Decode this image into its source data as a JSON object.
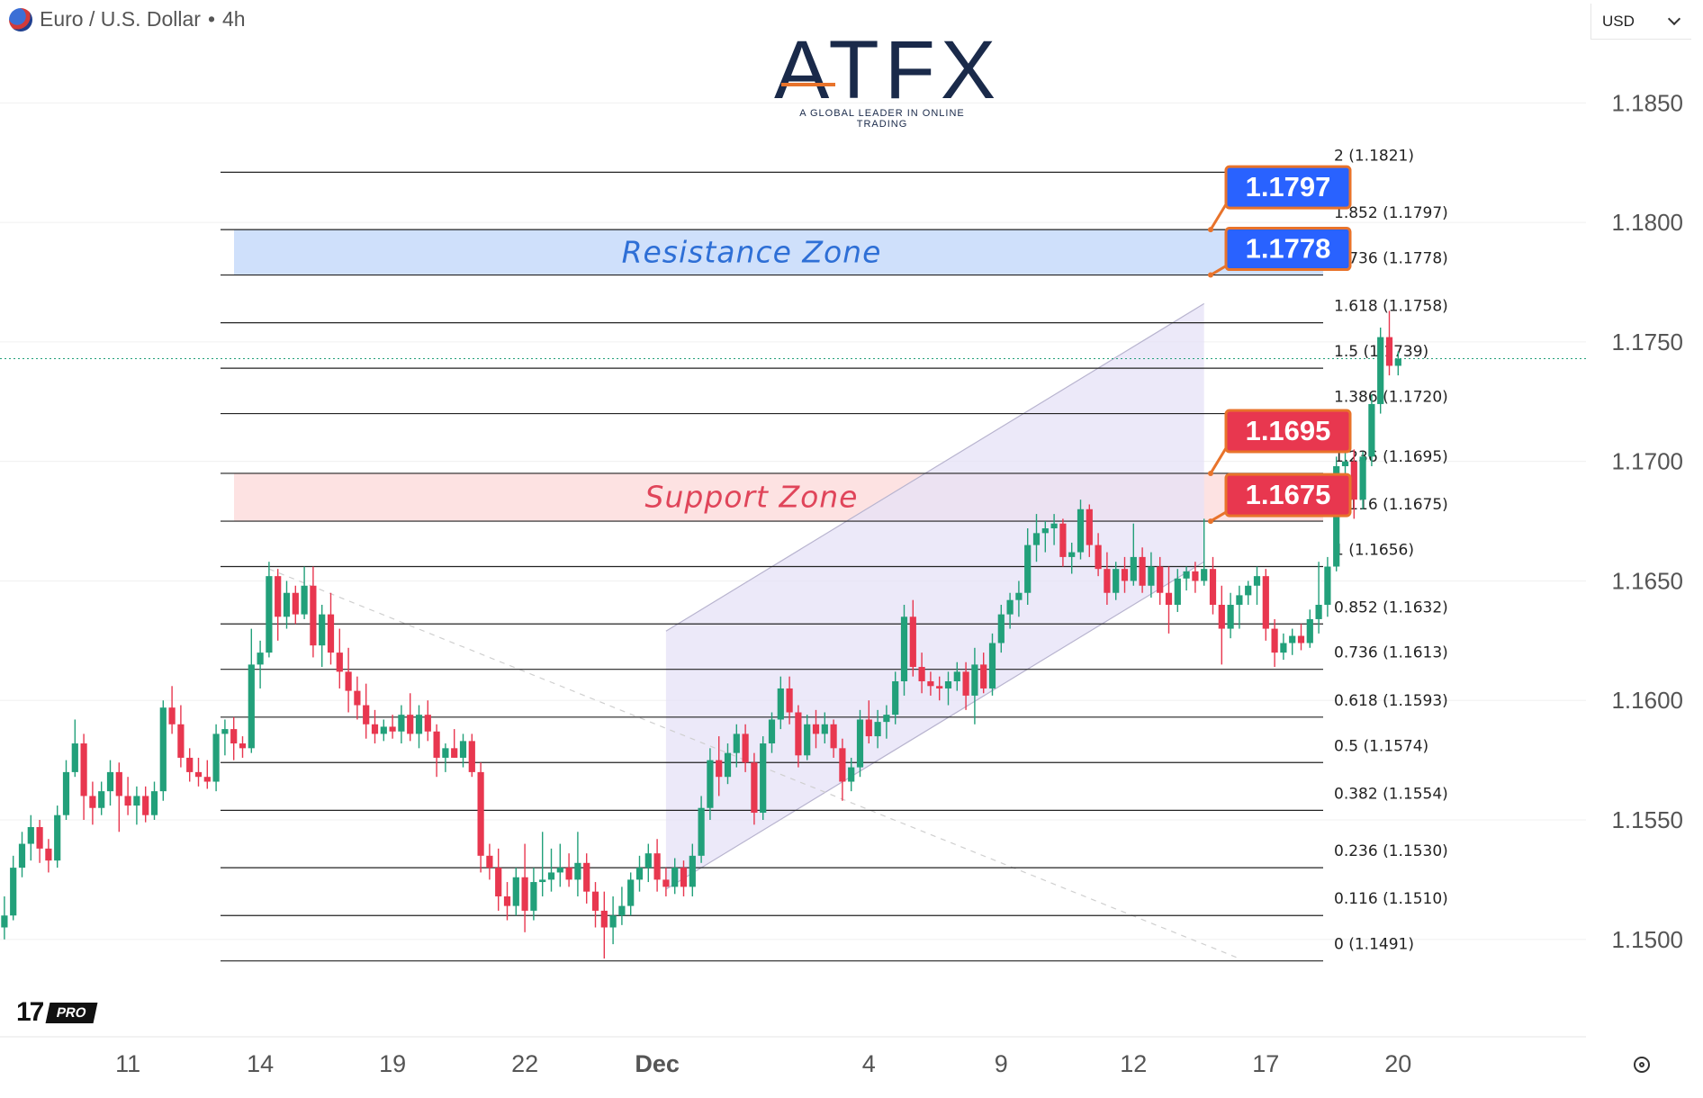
{
  "header": {
    "symbol": "Euro / U.S. Dollar",
    "timeframe": "4h",
    "currency": "USD"
  },
  "logo": {
    "word": "ATFX",
    "tagline": "A GLOBAL LEADER IN ONLINE TRADING"
  },
  "branding": {
    "tv_pro": "PRO"
  },
  "chart_data": {
    "type": "candlestick",
    "title": "",
    "price_axis": {
      "range": [
        1.146,
        1.1878
      ],
      "ticks": [
        "1.1850",
        "1.1800",
        "1.1750",
        "1.1700",
        "1.1650",
        "1.1600",
        "1.1550",
        "1.1500"
      ]
    },
    "time_axis": {
      "range_bars": [
        0,
        179
      ],
      "ticks": [
        {
          "label": "11",
          "bar": 14
        },
        {
          "label": "14",
          "bar": 29
        },
        {
          "label": "19",
          "bar": 44
        },
        {
          "label": "22",
          "bar": 59
        },
        {
          "label": "Dec",
          "bar": 74,
          "bold": true
        },
        {
          "label": "4",
          "bar": 98
        },
        {
          "label": "9",
          "bar": 113
        },
        {
          "label": "12",
          "bar": 128
        },
        {
          "label": "17",
          "bar": 143
        },
        {
          "label": "20",
          "bar": 158
        }
      ]
    },
    "fib_levels": [
      {
        "label": "2 (1.1821)",
        "price": 1.1821
      },
      {
        "label": "1.852 (1.1797)",
        "price": 1.1797
      },
      {
        "label": "1.736 (1.1778)",
        "price": 1.1778
      },
      {
        "label": "1.618 (1.1758)",
        "price": 1.1758
      },
      {
        "label": "1.5 (1.1739)",
        "price": 1.1739
      },
      {
        "label": "1.386 (1.1720)",
        "price": 1.172
      },
      {
        "label": "1.236 (1.1695)",
        "price": 1.1695
      },
      {
        "label": "1.116 (1.1675)",
        "price": 1.1675
      },
      {
        "label": "1 (1.1656)",
        "price": 1.1656
      },
      {
        "label": "0.852 (1.1632)",
        "price": 1.1632
      },
      {
        "label": "0.736 (1.1613)",
        "price": 1.1613
      },
      {
        "label": "0.618 (1.1593)",
        "price": 1.1593
      },
      {
        "label": "0.5 (1.1574)",
        "price": 1.1574
      },
      {
        "label": "0.382 (1.1554)",
        "price": 1.1554
      },
      {
        "label": "0.236 (1.1530)",
        "price": 1.153
      },
      {
        "label": "0.116 (1.1510)",
        "price": 1.151
      },
      {
        "label": "0 (1.1491)",
        "price": 1.1491
      }
    ],
    "fib_span_bars": [
      25,
      140
    ],
    "zones": [
      {
        "label": "Resistance Zone",
        "low": 1.1778,
        "high": 1.1797,
        "fill": "#cfe0fb",
        "text_color": "#2e6fd6"
      },
      {
        "label": "Support Zone",
        "low": 1.1675,
        "high": 1.1695,
        "fill": "#fde2e2",
        "text_color": "#e0455a"
      }
    ],
    "price_labels": [
      {
        "text": "1.1797",
        "price": 1.1797,
        "color": "#2962ff"
      },
      {
        "text": "1.1778",
        "price": 1.1778,
        "color": "#2962ff"
      },
      {
        "text": "1.1695",
        "price": 1.1695,
        "color": "#e8374f"
      },
      {
        "text": "1.1675",
        "price": 1.1675,
        "color": "#e8374f"
      }
    ],
    "channel": {
      "lower": [
        [
          75,
          1.1521
        ],
        [
          136,
          1.1658
        ]
      ],
      "upper": [
        [
          75,
          1.1629
        ],
        [
          136,
          1.1766
        ]
      ],
      "fill": "#e6e2f7"
    },
    "trendline": [
      [
        30,
        1.1655
      ],
      [
        140,
        1.1492
      ]
    ],
    "current_price": 1.1743,
    "colors": {
      "up": "#22a07a",
      "down": "#e8374f",
      "grid": "#f0f0f0",
      "level": "#222222"
    },
    "candles": [
      {
        "o": 1.1505,
        "h": 1.1518,
        "l": 1.15,
        "c": 1.151
      },
      {
        "o": 1.151,
        "h": 1.1535,
        "l": 1.1508,
        "c": 1.153
      },
      {
        "o": 1.153,
        "h": 1.1545,
        "l": 1.1526,
        "c": 1.154
      },
      {
        "o": 1.154,
        "h": 1.1552,
        "l": 1.1533,
        "c": 1.1547
      },
      {
        "o": 1.1547,
        "h": 1.155,
        "l": 1.1532,
        "c": 1.1538
      },
      {
        "o": 1.1538,
        "h": 1.1542,
        "l": 1.1528,
        "c": 1.1533
      },
      {
        "o": 1.1533,
        "h": 1.1556,
        "l": 1.153,
        "c": 1.1552
      },
      {
        "o": 1.1552,
        "h": 1.1575,
        "l": 1.155,
        "c": 1.157
      },
      {
        "o": 1.157,
        "h": 1.1592,
        "l": 1.1568,
        "c": 1.1582
      },
      {
        "o": 1.1582,
        "h": 1.1586,
        "l": 1.155,
        "c": 1.156
      },
      {
        "o": 1.156,
        "h": 1.1566,
        "l": 1.1548,
        "c": 1.1555
      },
      {
        "o": 1.1555,
        "h": 1.1566,
        "l": 1.1552,
        "c": 1.1562
      },
      {
        "o": 1.1562,
        "h": 1.1575,
        "l": 1.1556,
        "c": 1.157
      },
      {
        "o": 1.157,
        "h": 1.1574,
        "l": 1.1545,
        "c": 1.156
      },
      {
        "o": 1.156,
        "h": 1.1568,
        "l": 1.1552,
        "c": 1.1556
      },
      {
        "o": 1.1556,
        "h": 1.1564,
        "l": 1.1548,
        "c": 1.156
      },
      {
        "o": 1.156,
        "h": 1.1564,
        "l": 1.1549,
        "c": 1.1552
      },
      {
        "o": 1.1552,
        "h": 1.1566,
        "l": 1.155,
        "c": 1.1562
      },
      {
        "o": 1.1562,
        "h": 1.16,
        "l": 1.1558,
        "c": 1.1597
      },
      {
        "o": 1.1597,
        "h": 1.1606,
        "l": 1.1586,
        "c": 1.159
      },
      {
        "o": 1.159,
        "h": 1.1598,
        "l": 1.1572,
        "c": 1.1576
      },
      {
        "o": 1.1576,
        "h": 1.158,
        "l": 1.1566,
        "c": 1.157
      },
      {
        "o": 1.157,
        "h": 1.1576,
        "l": 1.1564,
        "c": 1.1568
      },
      {
        "o": 1.1568,
        "h": 1.1575,
        "l": 1.1563,
        "c": 1.1566
      },
      {
        "o": 1.1566,
        "h": 1.159,
        "l": 1.1562,
        "c": 1.1586
      },
      {
        "o": 1.1586,
        "h": 1.1592,
        "l": 1.1577,
        "c": 1.1588
      },
      {
        "o": 1.1588,
        "h": 1.1593,
        "l": 1.1575,
        "c": 1.1582
      },
      {
        "o": 1.1582,
        "h": 1.1585,
        "l": 1.1576,
        "c": 1.158
      },
      {
        "o": 1.158,
        "h": 1.163,
        "l": 1.1578,
        "c": 1.1615
      },
      {
        "o": 1.1615,
        "h": 1.1625,
        "l": 1.1605,
        "c": 1.162
      },
      {
        "o": 1.162,
        "h": 1.1658,
        "l": 1.1618,
        "c": 1.1652
      },
      {
        "o": 1.1652,
        "h": 1.1655,
        "l": 1.1625,
        "c": 1.1635
      },
      {
        "o": 1.1635,
        "h": 1.165,
        "l": 1.163,
        "c": 1.1645
      },
      {
        "o": 1.1645,
        "h": 1.1648,
        "l": 1.1632,
        "c": 1.1636
      },
      {
        "o": 1.1636,
        "h": 1.1656,
        "l": 1.1634,
        "c": 1.1648
      },
      {
        "o": 1.1648,
        "h": 1.1656,
        "l": 1.1618,
        "c": 1.1623
      },
      {
        "o": 1.1623,
        "h": 1.164,
        "l": 1.1614,
        "c": 1.1636
      },
      {
        "o": 1.1636,
        "h": 1.1645,
        "l": 1.1615,
        "c": 1.162
      },
      {
        "o": 1.162,
        "h": 1.163,
        "l": 1.1605,
        "c": 1.1612
      },
      {
        "o": 1.1612,
        "h": 1.1622,
        "l": 1.1595,
        "c": 1.1604
      },
      {
        "o": 1.1604,
        "h": 1.161,
        "l": 1.1592,
        "c": 1.1598
      },
      {
        "o": 1.1598,
        "h": 1.1607,
        "l": 1.1584,
        "c": 1.159
      },
      {
        "o": 1.159,
        "h": 1.1596,
        "l": 1.1582,
        "c": 1.1586
      },
      {
        "o": 1.1586,
        "h": 1.1592,
        "l": 1.1583,
        "c": 1.1589
      },
      {
        "o": 1.1589,
        "h": 1.1594,
        "l": 1.1584,
        "c": 1.1587
      },
      {
        "o": 1.1587,
        "h": 1.1598,
        "l": 1.1582,
        "c": 1.1594
      },
      {
        "o": 1.1594,
        "h": 1.1603,
        "l": 1.1583,
        "c": 1.1586
      },
      {
        "o": 1.1586,
        "h": 1.1598,
        "l": 1.158,
        "c": 1.1594
      },
      {
        "o": 1.1594,
        "h": 1.16,
        "l": 1.1583,
        "c": 1.1587
      },
      {
        "o": 1.1587,
        "h": 1.159,
        "l": 1.1568,
        "c": 1.1576
      },
      {
        "o": 1.1576,
        "h": 1.1582,
        "l": 1.157,
        "c": 1.158
      },
      {
        "o": 1.158,
        "h": 1.1588,
        "l": 1.1576,
        "c": 1.1576
      },
      {
        "o": 1.1576,
        "h": 1.1586,
        "l": 1.1572,
        "c": 1.1583
      },
      {
        "o": 1.1583,
        "h": 1.1586,
        "l": 1.1568,
        "c": 1.157
      },
      {
        "o": 1.157,
        "h": 1.1574,
        "l": 1.1528,
        "c": 1.1535
      },
      {
        "o": 1.1535,
        "h": 1.154,
        "l": 1.1525,
        "c": 1.153
      },
      {
        "o": 1.153,
        "h": 1.1538,
        "l": 1.1512,
        "c": 1.1518
      },
      {
        "o": 1.1518,
        "h": 1.1524,
        "l": 1.1508,
        "c": 1.1514
      },
      {
        "o": 1.1514,
        "h": 1.153,
        "l": 1.151,
        "c": 1.1526
      },
      {
        "o": 1.1526,
        "h": 1.154,
        "l": 1.1503,
        "c": 1.1512
      },
      {
        "o": 1.1512,
        "h": 1.153,
        "l": 1.1508,
        "c": 1.1524
      },
      {
        "o": 1.1524,
        "h": 1.1545,
        "l": 1.1518,
        "c": 1.1525
      },
      {
        "o": 1.1525,
        "h": 1.1538,
        "l": 1.152,
        "c": 1.1528
      },
      {
        "o": 1.1528,
        "h": 1.154,
        "l": 1.1522,
        "c": 1.153
      },
      {
        "o": 1.153,
        "h": 1.1536,
        "l": 1.1522,
        "c": 1.1525
      },
      {
        "o": 1.1525,
        "h": 1.1545,
        "l": 1.1518,
        "c": 1.1532
      },
      {
        "o": 1.1532,
        "h": 1.1536,
        "l": 1.1515,
        "c": 1.152
      },
      {
        "o": 1.152,
        "h": 1.1524,
        "l": 1.1505,
        "c": 1.1512
      },
      {
        "o": 1.1512,
        "h": 1.152,
        "l": 1.1492,
        "c": 1.1505
      },
      {
        "o": 1.1505,
        "h": 1.1518,
        "l": 1.1498,
        "c": 1.151
      },
      {
        "o": 1.151,
        "h": 1.1522,
        "l": 1.1506,
        "c": 1.1514
      },
      {
        "o": 1.1514,
        "h": 1.1528,
        "l": 1.151,
        "c": 1.1525
      },
      {
        "o": 1.1525,
        "h": 1.1535,
        "l": 1.152,
        "c": 1.153
      },
      {
        "o": 1.153,
        "h": 1.154,
        "l": 1.1524,
        "c": 1.1536
      },
      {
        "o": 1.1536,
        "h": 1.1542,
        "l": 1.152,
        "c": 1.1525
      },
      {
        "o": 1.1525,
        "h": 1.153,
        "l": 1.1518,
        "c": 1.1522
      },
      {
        "o": 1.1522,
        "h": 1.1534,
        "l": 1.1519,
        "c": 1.153
      },
      {
        "o": 1.153,
        "h": 1.1533,
        "l": 1.1518,
        "c": 1.1522
      },
      {
        "o": 1.1522,
        "h": 1.154,
        "l": 1.1518,
        "c": 1.1535
      },
      {
        "o": 1.1535,
        "h": 1.156,
        "l": 1.1532,
        "c": 1.1555
      },
      {
        "o": 1.1555,
        "h": 1.158,
        "l": 1.155,
        "c": 1.1575
      },
      {
        "o": 1.1575,
        "h": 1.1585,
        "l": 1.156,
        "c": 1.1568
      },
      {
        "o": 1.1568,
        "h": 1.1582,
        "l": 1.1565,
        "c": 1.1578
      },
      {
        "o": 1.1578,
        "h": 1.159,
        "l": 1.1572,
        "c": 1.1586
      },
      {
        "o": 1.1586,
        "h": 1.159,
        "l": 1.157,
        "c": 1.1574
      },
      {
        "o": 1.1574,
        "h": 1.1578,
        "l": 1.1548,
        "c": 1.1553
      },
      {
        "o": 1.1553,
        "h": 1.1585,
        "l": 1.155,
        "c": 1.1582
      },
      {
        "o": 1.1582,
        "h": 1.1595,
        "l": 1.1578,
        "c": 1.1592
      },
      {
        "o": 1.1592,
        "h": 1.161,
        "l": 1.1588,
        "c": 1.1605
      },
      {
        "o": 1.1605,
        "h": 1.161,
        "l": 1.159,
        "c": 1.1595
      },
      {
        "o": 1.1595,
        "h": 1.1598,
        "l": 1.1572,
        "c": 1.1577
      },
      {
        "o": 1.1577,
        "h": 1.1594,
        "l": 1.1575,
        "c": 1.159
      },
      {
        "o": 1.159,
        "h": 1.1596,
        "l": 1.158,
        "c": 1.1586
      },
      {
        "o": 1.1586,
        "h": 1.1595,
        "l": 1.1582,
        "c": 1.159
      },
      {
        "o": 1.159,
        "h": 1.1592,
        "l": 1.1576,
        "c": 1.158
      },
      {
        "o": 1.158,
        "h": 1.1584,
        "l": 1.1558,
        "c": 1.1566
      },
      {
        "o": 1.1566,
        "h": 1.1576,
        "l": 1.1562,
        "c": 1.1572
      },
      {
        "o": 1.1572,
        "h": 1.1596,
        "l": 1.1568,
        "c": 1.1592
      },
      {
        "o": 1.1592,
        "h": 1.16,
        "l": 1.1582,
        "c": 1.1585
      },
      {
        "o": 1.1585,
        "h": 1.1596,
        "l": 1.158,
        "c": 1.1591
      },
      {
        "o": 1.1591,
        "h": 1.1598,
        "l": 1.1584,
        "c": 1.1594
      },
      {
        "o": 1.1594,
        "h": 1.1612,
        "l": 1.159,
        "c": 1.1608
      },
      {
        "o": 1.1608,
        "h": 1.164,
        "l": 1.1602,
        "c": 1.1635
      },
      {
        "o": 1.1635,
        "h": 1.1642,
        "l": 1.161,
        "c": 1.1614
      },
      {
        "o": 1.1614,
        "h": 1.162,
        "l": 1.1603,
        "c": 1.1608
      },
      {
        "o": 1.1608,
        "h": 1.1612,
        "l": 1.1602,
        "c": 1.1606
      },
      {
        "o": 1.1606,
        "h": 1.161,
        "l": 1.16,
        "c": 1.1605
      },
      {
        "o": 1.1605,
        "h": 1.1612,
        "l": 1.1598,
        "c": 1.1608
      },
      {
        "o": 1.1608,
        "h": 1.1616,
        "l": 1.1604,
        "c": 1.1612
      },
      {
        "o": 1.1612,
        "h": 1.1616,
        "l": 1.1596,
        "c": 1.1602
      },
      {
        "o": 1.1602,
        "h": 1.1622,
        "l": 1.159,
        "c": 1.1615
      },
      {
        "o": 1.1615,
        "h": 1.162,
        "l": 1.1603,
        "c": 1.1605
      },
      {
        "o": 1.1605,
        "h": 1.1628,
        "l": 1.1602,
        "c": 1.1624
      },
      {
        "o": 1.1624,
        "h": 1.164,
        "l": 1.162,
        "c": 1.1636
      },
      {
        "o": 1.1636,
        "h": 1.1645,
        "l": 1.163,
        "c": 1.1642
      },
      {
        "o": 1.1642,
        "h": 1.165,
        "l": 1.1635,
        "c": 1.1645
      },
      {
        "o": 1.1645,
        "h": 1.1672,
        "l": 1.164,
        "c": 1.1665
      },
      {
        "o": 1.1665,
        "h": 1.1678,
        "l": 1.1658,
        "c": 1.167
      },
      {
        "o": 1.167,
        "h": 1.1675,
        "l": 1.1662,
        "c": 1.1672
      },
      {
        "o": 1.1672,
        "h": 1.1678,
        "l": 1.1665,
        "c": 1.1674
      },
      {
        "o": 1.1674,
        "h": 1.1676,
        "l": 1.1656,
        "c": 1.166
      },
      {
        "o": 1.166,
        "h": 1.1666,
        "l": 1.1653,
        "c": 1.1662
      },
      {
        "o": 1.1662,
        "h": 1.1684,
        "l": 1.1659,
        "c": 1.168
      },
      {
        "o": 1.168,
        "h": 1.1682,
        "l": 1.166,
        "c": 1.1665
      },
      {
        "o": 1.1665,
        "h": 1.167,
        "l": 1.1652,
        "c": 1.1655
      },
      {
        "o": 1.1655,
        "h": 1.1662,
        "l": 1.164,
        "c": 1.1645
      },
      {
        "o": 1.1645,
        "h": 1.1658,
        "l": 1.1642,
        "c": 1.1655
      },
      {
        "o": 1.1655,
        "h": 1.166,
        "l": 1.1645,
        "c": 1.165
      },
      {
        "o": 1.165,
        "h": 1.1674,
        "l": 1.1648,
        "c": 1.166
      },
      {
        "o": 1.166,
        "h": 1.1664,
        "l": 1.1645,
        "c": 1.1648
      },
      {
        "o": 1.1648,
        "h": 1.1662,
        "l": 1.1643,
        "c": 1.1656
      },
      {
        "o": 1.1656,
        "h": 1.166,
        "l": 1.164,
        "c": 1.1645
      },
      {
        "o": 1.1645,
        "h": 1.1656,
        "l": 1.1628,
        "c": 1.164
      },
      {
        "o": 1.164,
        "h": 1.1655,
        "l": 1.1637,
        "c": 1.1651
      },
      {
        "o": 1.1651,
        "h": 1.1656,
        "l": 1.1646,
        "c": 1.1654
      },
      {
        "o": 1.1654,
        "h": 1.1658,
        "l": 1.1645,
        "c": 1.165
      },
      {
        "o": 1.165,
        "h": 1.1676,
        "l": 1.1648,
        "c": 1.1655
      },
      {
        "o": 1.1655,
        "h": 1.166,
        "l": 1.1636,
        "c": 1.164
      },
      {
        "o": 1.164,
        "h": 1.1648,
        "l": 1.1615,
        "c": 1.163
      },
      {
        "o": 1.163,
        "h": 1.1645,
        "l": 1.1626,
        "c": 1.164
      },
      {
        "o": 1.164,
        "h": 1.1648,
        "l": 1.163,
        "c": 1.1644
      },
      {
        "o": 1.1644,
        "h": 1.165,
        "l": 1.164,
        "c": 1.1648
      },
      {
        "o": 1.1648,
        "h": 1.1656,
        "l": 1.164,
        "c": 1.1652
      },
      {
        "o": 1.1652,
        "h": 1.1655,
        "l": 1.1625,
        "c": 1.163
      },
      {
        "o": 1.163,
        "h": 1.1634,
        "l": 1.1614,
        "c": 1.162
      },
      {
        "o": 1.162,
        "h": 1.1628,
        "l": 1.1617,
        "c": 1.1624
      },
      {
        "o": 1.1624,
        "h": 1.163,
        "l": 1.1619,
        "c": 1.1627
      },
      {
        "o": 1.1627,
        "h": 1.1632,
        "l": 1.1621,
        "c": 1.1624
      },
      {
        "o": 1.1624,
        "h": 1.1638,
        "l": 1.1622,
        "c": 1.1634
      },
      {
        "o": 1.1634,
        "h": 1.1658,
        "l": 1.1628,
        "c": 1.164
      },
      {
        "o": 1.164,
        "h": 1.166,
        "l": 1.1635,
        "c": 1.1656
      },
      {
        "o": 1.1656,
        "h": 1.1702,
        "l": 1.1654,
        "c": 1.1698
      },
      {
        "o": 1.1698,
        "h": 1.1706,
        "l": 1.168,
        "c": 1.17
      },
      {
        "o": 1.17,
        "h": 1.1705,
        "l": 1.1676,
        "c": 1.1684
      },
      {
        "o": 1.1684,
        "h": 1.1704,
        "l": 1.168,
        "c": 1.1702
      },
      {
        "o": 1.1702,
        "h": 1.1728,
        "l": 1.1698,
        "c": 1.1724
      },
      {
        "o": 1.1724,
        "h": 1.1756,
        "l": 1.172,
        "c": 1.1752
      },
      {
        "o": 1.1752,
        "h": 1.1763,
        "l": 1.1736,
        "c": 1.174
      },
      {
        "o": 1.174,
        "h": 1.1746,
        "l": 1.1736,
        "c": 1.1743
      }
    ]
  }
}
